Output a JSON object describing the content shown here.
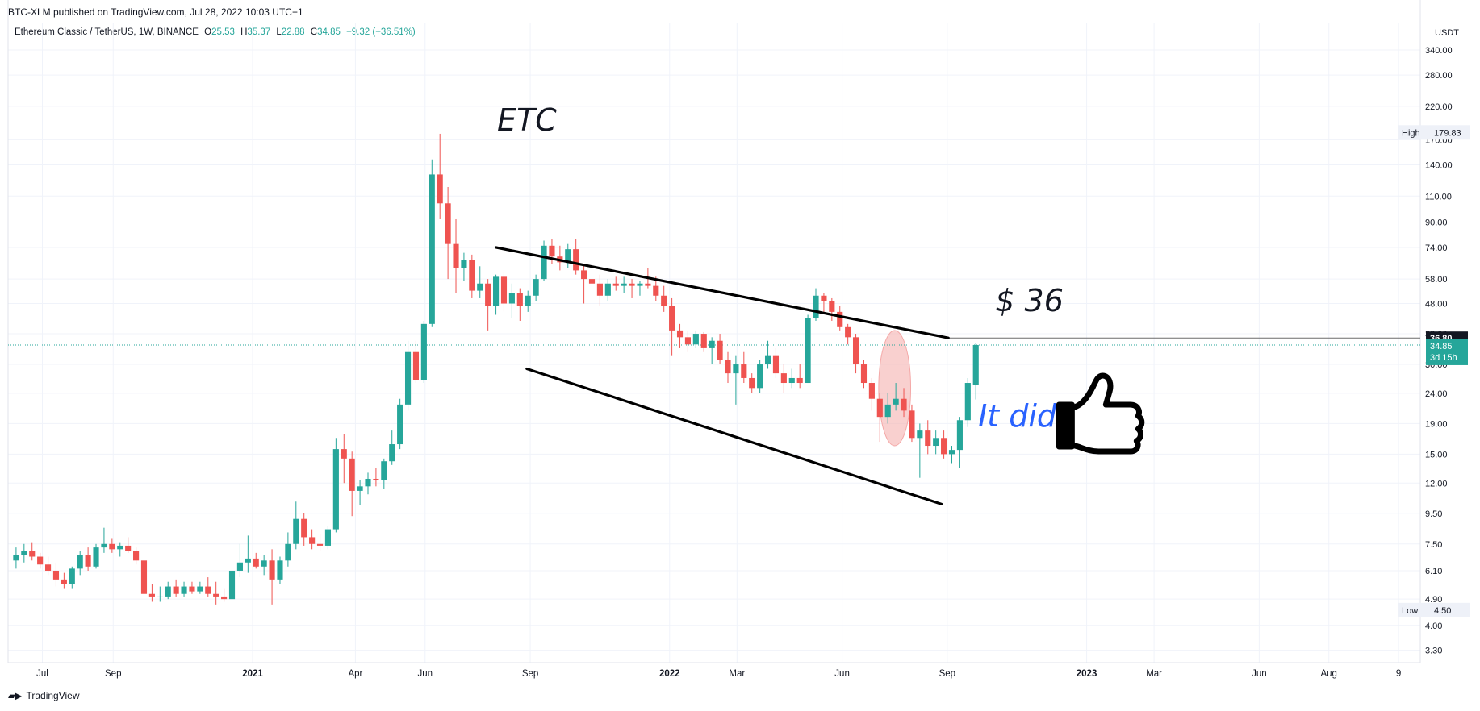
{
  "header": {
    "published": "BTC-XLM published on TradingView.com, Jul 28, 2022 10:03 UTC+1"
  },
  "legend": {
    "symbol": "Ethereum Classic / TetherUS, 1W, BINANCE",
    "o_label": "O",
    "o": "25.53",
    "h_label": "H",
    "h": "35.37",
    "l_label": "L",
    "l": "22.88",
    "c_label": "C",
    "c": "34.85",
    "change": "+9.32 (+36.51%)"
  },
  "footer": {
    "brand": "TradingView"
  },
  "colors": {
    "up": "#26a69a",
    "down": "#ef5350",
    "trend": "#000000",
    "accent_text": "#2962ff",
    "highlight": "#f4a9a8"
  },
  "chart_data": {
    "type": "candlestick",
    "timeframe": "1W",
    "y_scale": "log",
    "ylim": [
      3.0,
      420.0
    ],
    "xlim": [
      "2020-06-01",
      "2023-10-20"
    ],
    "y_unit": "USDT",
    "y_ticks": [
      "340.00",
      "280.00",
      "220.00",
      "170.00",
      "140.00",
      "110.00",
      "90.00",
      "74.00",
      "58.00",
      "48.00",
      "38.00",
      "30.00",
      "24.00",
      "19.00",
      "15.00",
      "12.00",
      "9.50",
      "7.50",
      "6.10",
      "4.90",
      "4.00",
      "3.30"
    ],
    "x_ticks": [
      {
        "label": "Jul",
        "date": "2020-07-01",
        "bold": false
      },
      {
        "label": "Sep",
        "date": "2020-09-01",
        "bold": false
      },
      {
        "label": "2021",
        "date": "2021-01-01",
        "bold": true
      },
      {
        "label": "Apr",
        "date": "2021-04-01",
        "bold": false
      },
      {
        "label": "Jun",
        "date": "2021-06-01",
        "bold": false
      },
      {
        "label": "Sep",
        "date": "2021-09-01",
        "bold": false
      },
      {
        "label": "2022",
        "date": "2022-01-01",
        "bold": true
      },
      {
        "label": "Mar",
        "date": "2022-03-01",
        "bold": false
      },
      {
        "label": "Jun",
        "date": "2022-06-01",
        "bold": false
      },
      {
        "label": "Sep",
        "date": "2022-09-01",
        "bold": false
      },
      {
        "label": "2023",
        "date": "2023-01-01",
        "bold": true
      },
      {
        "label": "Mar",
        "date": "2023-03-01",
        "bold": false
      },
      {
        "label": "Jun",
        "date": "2023-06-01",
        "bold": false
      },
      {
        "label": "Aug",
        "date": "2023-08-01",
        "bold": false
      },
      {
        "label": "9",
        "date": "2023-10-01",
        "bold": false
      }
    ],
    "first_candle_date": "2020-06-08",
    "candles": [
      [
        6.6,
        7.3,
        6.2,
        6.9
      ],
      [
        6.9,
        7.5,
        6.5,
        7.1
      ],
      [
        7.1,
        7.6,
        6.6,
        6.8
      ],
      [
        6.8,
        7.0,
        6.2,
        6.4
      ],
      [
        6.4,
        6.8,
        5.9,
        6.1
      ],
      [
        6.1,
        6.5,
        5.4,
        5.7
      ],
      [
        5.7,
        6.0,
        5.3,
        5.5
      ],
      [
        5.5,
        6.3,
        5.3,
        6.2
      ],
      [
        6.2,
        7.1,
        5.9,
        6.9
      ],
      [
        6.9,
        7.3,
        6.1,
        6.3
      ],
      [
        6.3,
        7.5,
        6.2,
        7.3
      ],
      [
        7.3,
        8.5,
        7.0,
        7.5
      ],
      [
        7.5,
        7.8,
        7.0,
        7.2
      ],
      [
        7.2,
        7.6,
        6.8,
        7.4
      ],
      [
        7.4,
        7.9,
        7.0,
        7.1
      ],
      [
        7.1,
        7.3,
        6.4,
        6.6
      ],
      [
        6.6,
        6.8,
        4.6,
        5.1
      ],
      [
        5.1,
        5.5,
        4.8,
        5.0
      ],
      [
        5.0,
        5.4,
        4.8,
        5.0
      ],
      [
        5.0,
        5.6,
        4.9,
        5.4
      ],
      [
        5.4,
        5.7,
        5.0,
        5.1
      ],
      [
        5.1,
        5.6,
        5.0,
        5.4
      ],
      [
        5.4,
        5.6,
        5.1,
        5.2
      ],
      [
        5.2,
        5.6,
        5.1,
        5.4
      ],
      [
        5.4,
        5.8,
        5.0,
        5.1
      ],
      [
        5.1,
        5.6,
        4.7,
        5.0
      ],
      [
        5.0,
        5.3,
        4.8,
        4.9
      ],
      [
        4.9,
        6.4,
        4.9,
        6.1
      ],
      [
        6.1,
        7.5,
        5.8,
        6.5
      ],
      [
        6.5,
        8.0,
        6.0,
        6.7
      ],
      [
        6.7,
        7.0,
        6.2,
        6.3
      ],
      [
        6.3,
        6.9,
        5.9,
        6.6
      ],
      [
        6.6,
        7.2,
        4.7,
        5.7
      ],
      [
        5.7,
        6.8,
        5.5,
        6.6
      ],
      [
        6.6,
        8.2,
        6.3,
        7.5
      ],
      [
        7.5,
        10.4,
        7.2,
        9.1
      ],
      [
        9.1,
        9.5,
        7.4,
        7.9
      ],
      [
        7.9,
        8.4,
        7.2,
        7.5
      ],
      [
        7.5,
        8.1,
        7.1,
        7.4
      ],
      [
        7.4,
        8.6,
        7.2,
        8.4
      ],
      [
        8.4,
        17.0,
        8.2,
        15.6
      ],
      [
        15.6,
        17.5,
        12.0,
        14.5
      ],
      [
        14.5,
        15.3,
        9.3,
        11.3
      ],
      [
        11.3,
        12.3,
        10.1,
        11.7
      ],
      [
        11.7,
        13.0,
        11.0,
        12.4
      ],
      [
        12.4,
        13.5,
        11.7,
        12.3
      ],
      [
        12.3,
        14.5,
        11.5,
        14.2
      ],
      [
        14.2,
        18.0,
        13.8,
        16.2
      ],
      [
        16.2,
        23.0,
        15.6,
        22.0
      ],
      [
        22.0,
        36.0,
        21.0,
        33.0
      ],
      [
        33.0,
        36.0,
        26.0,
        26.5
      ],
      [
        26.5,
        42.0,
        26.0,
        41.0
      ],
      [
        41.0,
        146.0,
        40.0,
        130.0
      ],
      [
        130.0,
        178.0,
        92.0,
        104.0
      ],
      [
        104.0,
        118.0,
        58.0,
        76.0
      ],
      [
        76.0,
        92.0,
        52.0,
        63.0
      ],
      [
        63.0,
        71.0,
        57.0,
        67.0
      ],
      [
        67.0,
        70.0,
        50.0,
        53.0
      ],
      [
        53.0,
        64.0,
        50.0,
        56.0
      ],
      [
        56.0,
        58.0,
        39.0,
        47.0
      ],
      [
        47.0,
        60.0,
        44.0,
        59.0
      ],
      [
        59.0,
        61.0,
        45.0,
        48.0
      ],
      [
        48.0,
        56.0,
        43.0,
        52.0
      ],
      [
        52.0,
        54.0,
        42.0,
        47.0
      ],
      [
        47.0,
        53.0,
        45.0,
        51.0
      ],
      [
        51.0,
        60.0,
        49.0,
        58.0
      ],
      [
        58.0,
        78.0,
        57.0,
        75.0
      ],
      [
        75.0,
        79.0,
        65.0,
        69.0
      ],
      [
        69.0,
        75.0,
        62.0,
        66.0
      ],
      [
        66.0,
        76.0,
        63.0,
        73.0
      ],
      [
        73.0,
        79.0,
        60.0,
        62.0
      ],
      [
        62.0,
        65.0,
        48.0,
        58.0
      ],
      [
        58.0,
        64.0,
        55.0,
        56.0
      ],
      [
        56.0,
        60.0,
        47.0,
        51.0
      ],
      [
        51.0,
        58.0,
        49.0,
        56.0
      ],
      [
        56.0,
        59.0,
        53.0,
        55.0
      ],
      [
        55.0,
        59.0,
        52.0,
        56.0
      ],
      [
        56.0,
        58.0,
        50.0,
        55.0
      ],
      [
        55.0,
        57.0,
        51.0,
        56.0
      ],
      [
        56.0,
        63.0,
        54.0,
        55.0
      ],
      [
        55.0,
        59.0,
        49.0,
        51.0
      ],
      [
        51.0,
        55.0,
        45.0,
        47.0
      ],
      [
        47.0,
        50.0,
        32.0,
        39.0
      ],
      [
        39.0,
        41.0,
        34.0,
        37.0
      ],
      [
        37.0,
        39.0,
        33.0,
        35.0
      ],
      [
        35.0,
        39.0,
        34.0,
        38.0
      ],
      [
        38.0,
        38.5,
        33.0,
        34.0
      ],
      [
        34.0,
        37.0,
        30.0,
        36.0
      ],
      [
        36.0,
        38.0,
        30.0,
        31.0
      ],
      [
        31.0,
        33.0,
        26.0,
        28.0
      ],
      [
        28.0,
        32.0,
        22.0,
        30.0
      ],
      [
        30.0,
        33.0,
        26.0,
        27.0
      ],
      [
        27.0,
        28.0,
        24.0,
        25.0
      ],
      [
        25.0,
        31.0,
        24.0,
        30.0
      ],
      [
        30.0,
        36.0,
        29.0,
        32.0
      ],
      [
        32.0,
        34.0,
        27.0,
        28.0
      ],
      [
        28.0,
        30.0,
        24.0,
        26.0
      ],
      [
        26.0,
        29.0,
        25.0,
        27.0
      ],
      [
        27.0,
        30.0,
        25.0,
        26.0
      ],
      [
        26.0,
        44.0,
        26.0,
        43.0
      ],
      [
        43.0,
        54.0,
        42.0,
        51.0
      ],
      [
        51.0,
        52.0,
        45.0,
        49.0
      ],
      [
        49.0,
        50.0,
        42.0,
        45.0
      ],
      [
        45.0,
        47.0,
        39.0,
        40.0
      ],
      [
        40.0,
        41.0,
        35.0,
        37.0
      ],
      [
        37.0,
        38.0,
        28.0,
        30.0
      ],
      [
        30.0,
        31.0,
        25.0,
        26.0
      ],
      [
        26.0,
        27.0,
        21.0,
        23.0
      ],
      [
        23.0,
        24.0,
        16.5,
        20.0
      ],
      [
        20.0,
        24.0,
        19.0,
        22.0
      ],
      [
        22.0,
        26.0,
        21.0,
        23.0
      ],
      [
        23.0,
        25.0,
        20.0,
        21.0
      ],
      [
        21.0,
        22.0,
        16.5,
        17.0
      ],
      [
        17.0,
        19.0,
        12.5,
        18.0
      ],
      [
        18.0,
        19.5,
        15.0,
        16.0
      ],
      [
        16.0,
        18.0,
        15.0,
        17.0
      ],
      [
        17.0,
        18.0,
        14.5,
        15.0
      ],
      [
        15.0,
        16.0,
        14.0,
        15.5
      ],
      [
        15.5,
        20.0,
        13.5,
        19.5
      ],
      [
        19.5,
        27.0,
        18.5,
        26.0
      ],
      [
        25.53,
        35.37,
        22.88,
        34.85
      ]
    ],
    "trendlines": [
      {
        "from": [
          "2021-08-02",
          74.0
        ],
        "to": [
          "2022-09-02",
          36.8
        ]
      },
      {
        "from": [
          "2021-08-29",
          29.0
        ],
        "to": [
          "2022-08-27",
          10.2
        ]
      }
    ],
    "horizontal_level": {
      "value": 36.8,
      "from": "2022-09-02"
    },
    "last_price_line": {
      "value": 34.85
    },
    "price_labels": {
      "level_value": "36.80",
      "last_value": "34.85",
      "countdown": "3d 15h",
      "high_label": "High",
      "high_value": "179.83",
      "high_price": 179.83,
      "low_label": "Low",
      "low_value": "4.50",
      "low_price": 4.5
    },
    "annotations": {
      "title": "ETC",
      "price_note": "$ 36",
      "note": "It did"
    },
    "highlight_ellipse": {
      "center": [
        "2022-07-17",
        25.0
      ],
      "date_from": "2022-07-03",
      "date_to": "2022-07-31",
      "price_from": 16.0,
      "price_to": 39.0
    }
  }
}
